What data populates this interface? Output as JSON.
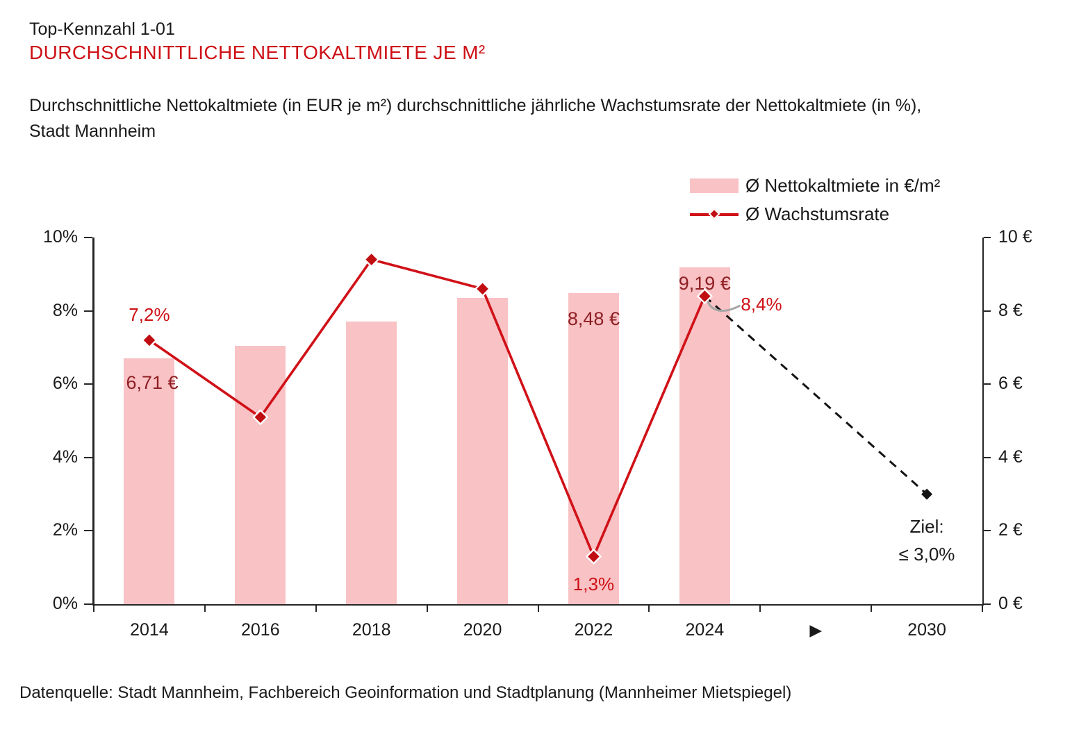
{
  "header": {
    "kicker": "Top-Kennzahl 1-01",
    "title": "DURCHSCHNITTLICHE NETTOKALTMIETE JE M²",
    "subtitle": "Durchschnittliche Nettokaltmiete (in EUR je m²) durchschnittliche jährliche Wachstumsrate der Nettokaltmiete (in %),\nStadt Mannheim"
  },
  "legend": {
    "items": [
      {
        "swatch": "pink-bar",
        "label": "Ø Nettokaltmiete in €/m²"
      },
      {
        "swatch": "red-line-diamond",
        "label": "Ø Wachstumsrate"
      }
    ]
  },
  "footer": {
    "source": "Datenquelle: Stadt Mannheim, Fachbereich Geoinformation und Stadtplanung (Mannheimer Mietspiegel)"
  },
  "colors": {
    "title_red": "#CE1016",
    "line_red": "#D01118",
    "marker_red": "#C00D12",
    "bar_pink": "#F9C2C5",
    "euro_label_red": "#8E1F23",
    "pct_label_red": "#CE1016",
    "leader_gray": "#A6A6A6",
    "target_black": "#141414",
    "axis_black": "#262626"
  },
  "chart_data": {
    "type": "bar+line",
    "title": "Durchschnittliche Nettokaltmiete je m², Stadt Mannheim",
    "categories": [
      "2014",
      "2016",
      "2018",
      "2020",
      "2022",
      "2024",
      "▶",
      "2030"
    ],
    "series": [
      {
        "name": "Ø Nettokaltmiete in €/m²",
        "type": "bar",
        "axis": "right",
        "unit": "€/m²",
        "values": [
          6.71,
          7.05,
          7.7,
          8.35,
          8.48,
          9.19,
          null,
          null
        ]
      },
      {
        "name": "Ø Wachstumsrate",
        "type": "line",
        "axis": "left",
        "unit": "%",
        "values": [
          7.2,
          5.1,
          9.4,
          8.6,
          1.3,
          8.4,
          null,
          null
        ]
      }
    ],
    "target": {
      "category": "2030",
      "value": 3.0,
      "from_category": "2024",
      "from_value": 8.4,
      "style": "dashed-black",
      "label_line1": "Ziel:",
      "label_line2": "≤ 3,0%"
    },
    "point_labels": {
      "growth_2014": "7,2%",
      "rent_2014": "6,71 €",
      "rent_2022": "8,48 €",
      "rent_2024": "9,19 €",
      "growth_2022": "1,3%",
      "growth_2024": "8,4%"
    },
    "left_axis": {
      "unit": "%",
      "min": 0,
      "max": 10,
      "tick_values": [
        0,
        2,
        4,
        6,
        8,
        10
      ],
      "tick_labels": [
        "0%",
        "2%",
        "4%",
        "6%",
        "8%",
        "10%"
      ]
    },
    "right_axis": {
      "unit": "€",
      "min": 0,
      "max": 10,
      "tick_values": [
        0,
        2,
        4,
        6,
        8,
        10
      ],
      "tick_labels": [
        "0 €",
        "2 €",
        "4 €",
        "6 €",
        "8 €",
        "10 €"
      ]
    },
    "grid": false,
    "legend_position": "top-right"
  }
}
